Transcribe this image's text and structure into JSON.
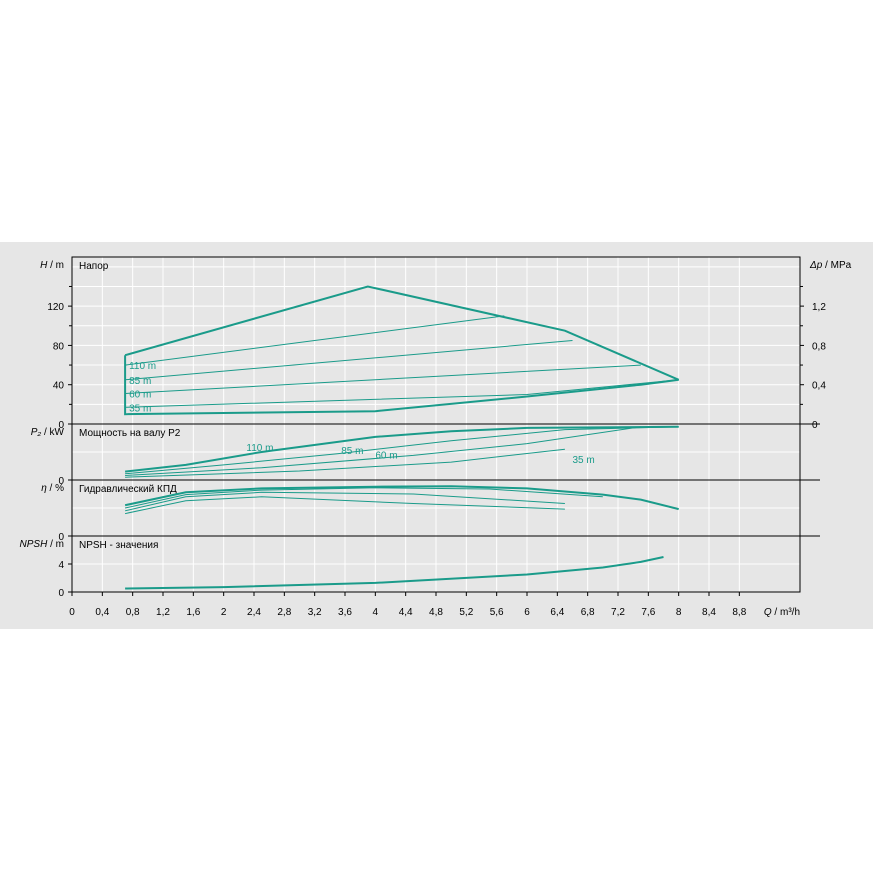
{
  "chart_data": {
    "type": "line",
    "colors": {
      "curve": "#1a9b8a",
      "background": "#e6e6e6",
      "grid": "#ffffff"
    },
    "x_axis": {
      "label_var": "Q",
      "label_unit": "m³/h",
      "range": [
        0,
        9.6
      ],
      "ticks": [
        "0",
        "0,4",
        "0,8",
        "1,2",
        "1,6",
        "2",
        "2,4",
        "2,8",
        "3,2",
        "3,6",
        "4",
        "4,4",
        "4,8",
        "5,2",
        "5,6",
        "6",
        "6,4",
        "6,8",
        "7,2",
        "7,6",
        "8",
        "8,4",
        "8,8"
      ]
    },
    "panels": [
      {
        "id": "head",
        "title": "Напор",
        "y_var": "H",
        "y_unit": "m",
        "y_range": [
          0,
          170
        ],
        "y_ticks": [
          0,
          40,
          80,
          120
        ],
        "y_tick_labels": [
          "0",
          "40",
          "80",
          "120"
        ],
        "right_axis": {
          "var": "Δp",
          "unit": "MPa",
          "tick_labels": [
            "0",
            "0,4",
            "0,8",
            "1,2"
          ],
          "tick_values": [
            0,
            40,
            80,
            120
          ]
        },
        "curves": [
          {
            "label": "110 m",
            "points": [
              [
                0.7,
                60
              ],
              [
                5.7,
                110
              ]
            ]
          },
          {
            "label": "85 m",
            "points": [
              [
                0.7,
                45
              ],
              [
                6.6,
                85
              ]
            ]
          },
          {
            "label": "60 m",
            "points": [
              [
                0.7,
                31
              ],
              [
                7.5,
                60
              ]
            ]
          },
          {
            "label": "35 m",
            "points": [
              [
                0.7,
                17
              ],
              [
                6.0,
                30
              ],
              [
                8.0,
                45
              ]
            ]
          },
          {
            "label": "",
            "points": [
              [
                0.7,
                70
              ],
              [
                3.9,
                140
              ],
              [
                6.5,
                95
              ],
              [
                8.0,
                45
              ]
            ]
          },
          {
            "label": "",
            "points": [
              [
                0.7,
                70
              ],
              [
                0.7,
                10
              ],
              [
                4.0,
                13
              ],
              [
                6.0,
                28
              ],
              [
                7.5,
                40
              ],
              [
                8.0,
                45
              ]
            ]
          }
        ]
      },
      {
        "id": "power",
        "title": "Мощность на валу P2",
        "y_var": "P₂",
        "y_unit": "kW",
        "y_range": [
          0,
          1
        ],
        "y_ticks": [
          0
        ],
        "y_tick_labels": [
          "0"
        ],
        "curves": [
          {
            "label": "110 m",
            "points": [
              [
                0.7,
                0.15
              ],
              [
                1.5,
                0.27
              ],
              [
                2.5,
                0.5
              ],
              [
                4.0,
                0.77
              ],
              [
                5.0,
                0.87
              ],
              [
                6.0,
                0.93
              ],
              [
                8.0,
                0.95
              ]
            ]
          },
          {
            "label": "85 m",
            "points": [
              [
                0.7,
                0.11
              ],
              [
                2.0,
                0.27
              ],
              [
                3.5,
                0.47
              ],
              [
                5.0,
                0.7
              ],
              [
                6.5,
                0.9
              ],
              [
                8.0,
                0.95
              ]
            ]
          },
          {
            "label": "60 m",
            "points": [
              [
                0.7,
                0.08
              ],
              [
                2.5,
                0.22
              ],
              [
                4.5,
                0.44
              ],
              [
                6.0,
                0.65
              ],
              [
                7.5,
                0.95
              ]
            ]
          },
          {
            "label": "35 m",
            "points": [
              [
                0.7,
                0.05
              ],
              [
                3.0,
                0.16
              ],
              [
                5.0,
                0.32
              ],
              [
                6.5,
                0.55
              ]
            ]
          }
        ]
      },
      {
        "id": "efficiency",
        "title": "Гидравлический КПД",
        "y_var": "η",
        "y_unit": "%",
        "y_range": [
          0,
          100
        ],
        "y_ticks": [
          0
        ],
        "y_tick_labels": [
          "0"
        ],
        "curves": [
          {
            "label": "",
            "points": [
              [
                0.7,
                55
              ],
              [
                1.5,
                78
              ],
              [
                2.5,
                85
              ],
              [
                4.0,
                88
              ],
              [
                5.0,
                89
              ],
              [
                6.0,
                85
              ],
              [
                7.0,
                74
              ],
              [
                7.5,
                65
              ],
              [
                8.0,
                48
              ]
            ]
          },
          {
            "label": "",
            "points": [
              [
                0.7,
                50
              ],
              [
                1.5,
                74
              ],
              [
                2.5,
                82
              ],
              [
                4.0,
                86
              ],
              [
                5.5,
                84
              ],
              [
                7.0,
                70
              ]
            ]
          },
          {
            "label": "",
            "points": [
              [
                0.7,
                45
              ],
              [
                1.5,
                70
              ],
              [
                2.5,
                78
              ],
              [
                4.5,
                75
              ],
              [
                6.5,
                58
              ]
            ]
          },
          {
            "label": "",
            "points": [
              [
                0.7,
                40
              ],
              [
                1.5,
                63
              ],
              [
                2.5,
                70
              ],
              [
                4.5,
                58
              ],
              [
                6.5,
                48
              ]
            ]
          }
        ]
      },
      {
        "id": "npsh",
        "title": "NPSH - значения",
        "y_var": "NPSH",
        "y_unit": "m",
        "y_range": [
          0,
          8
        ],
        "y_ticks": [
          0,
          4
        ],
        "y_tick_labels": [
          "0",
          "4"
        ],
        "curves": [
          {
            "label": "",
            "points": [
              [
                0.7,
                0.5
              ],
              [
                2.0,
                0.7
              ],
              [
                4.0,
                1.3
              ],
              [
                6.0,
                2.5
              ],
              [
                7.0,
                3.5
              ],
              [
                7.5,
                4.3
              ],
              [
                7.8,
                5.0
              ]
            ]
          }
        ]
      }
    ]
  }
}
